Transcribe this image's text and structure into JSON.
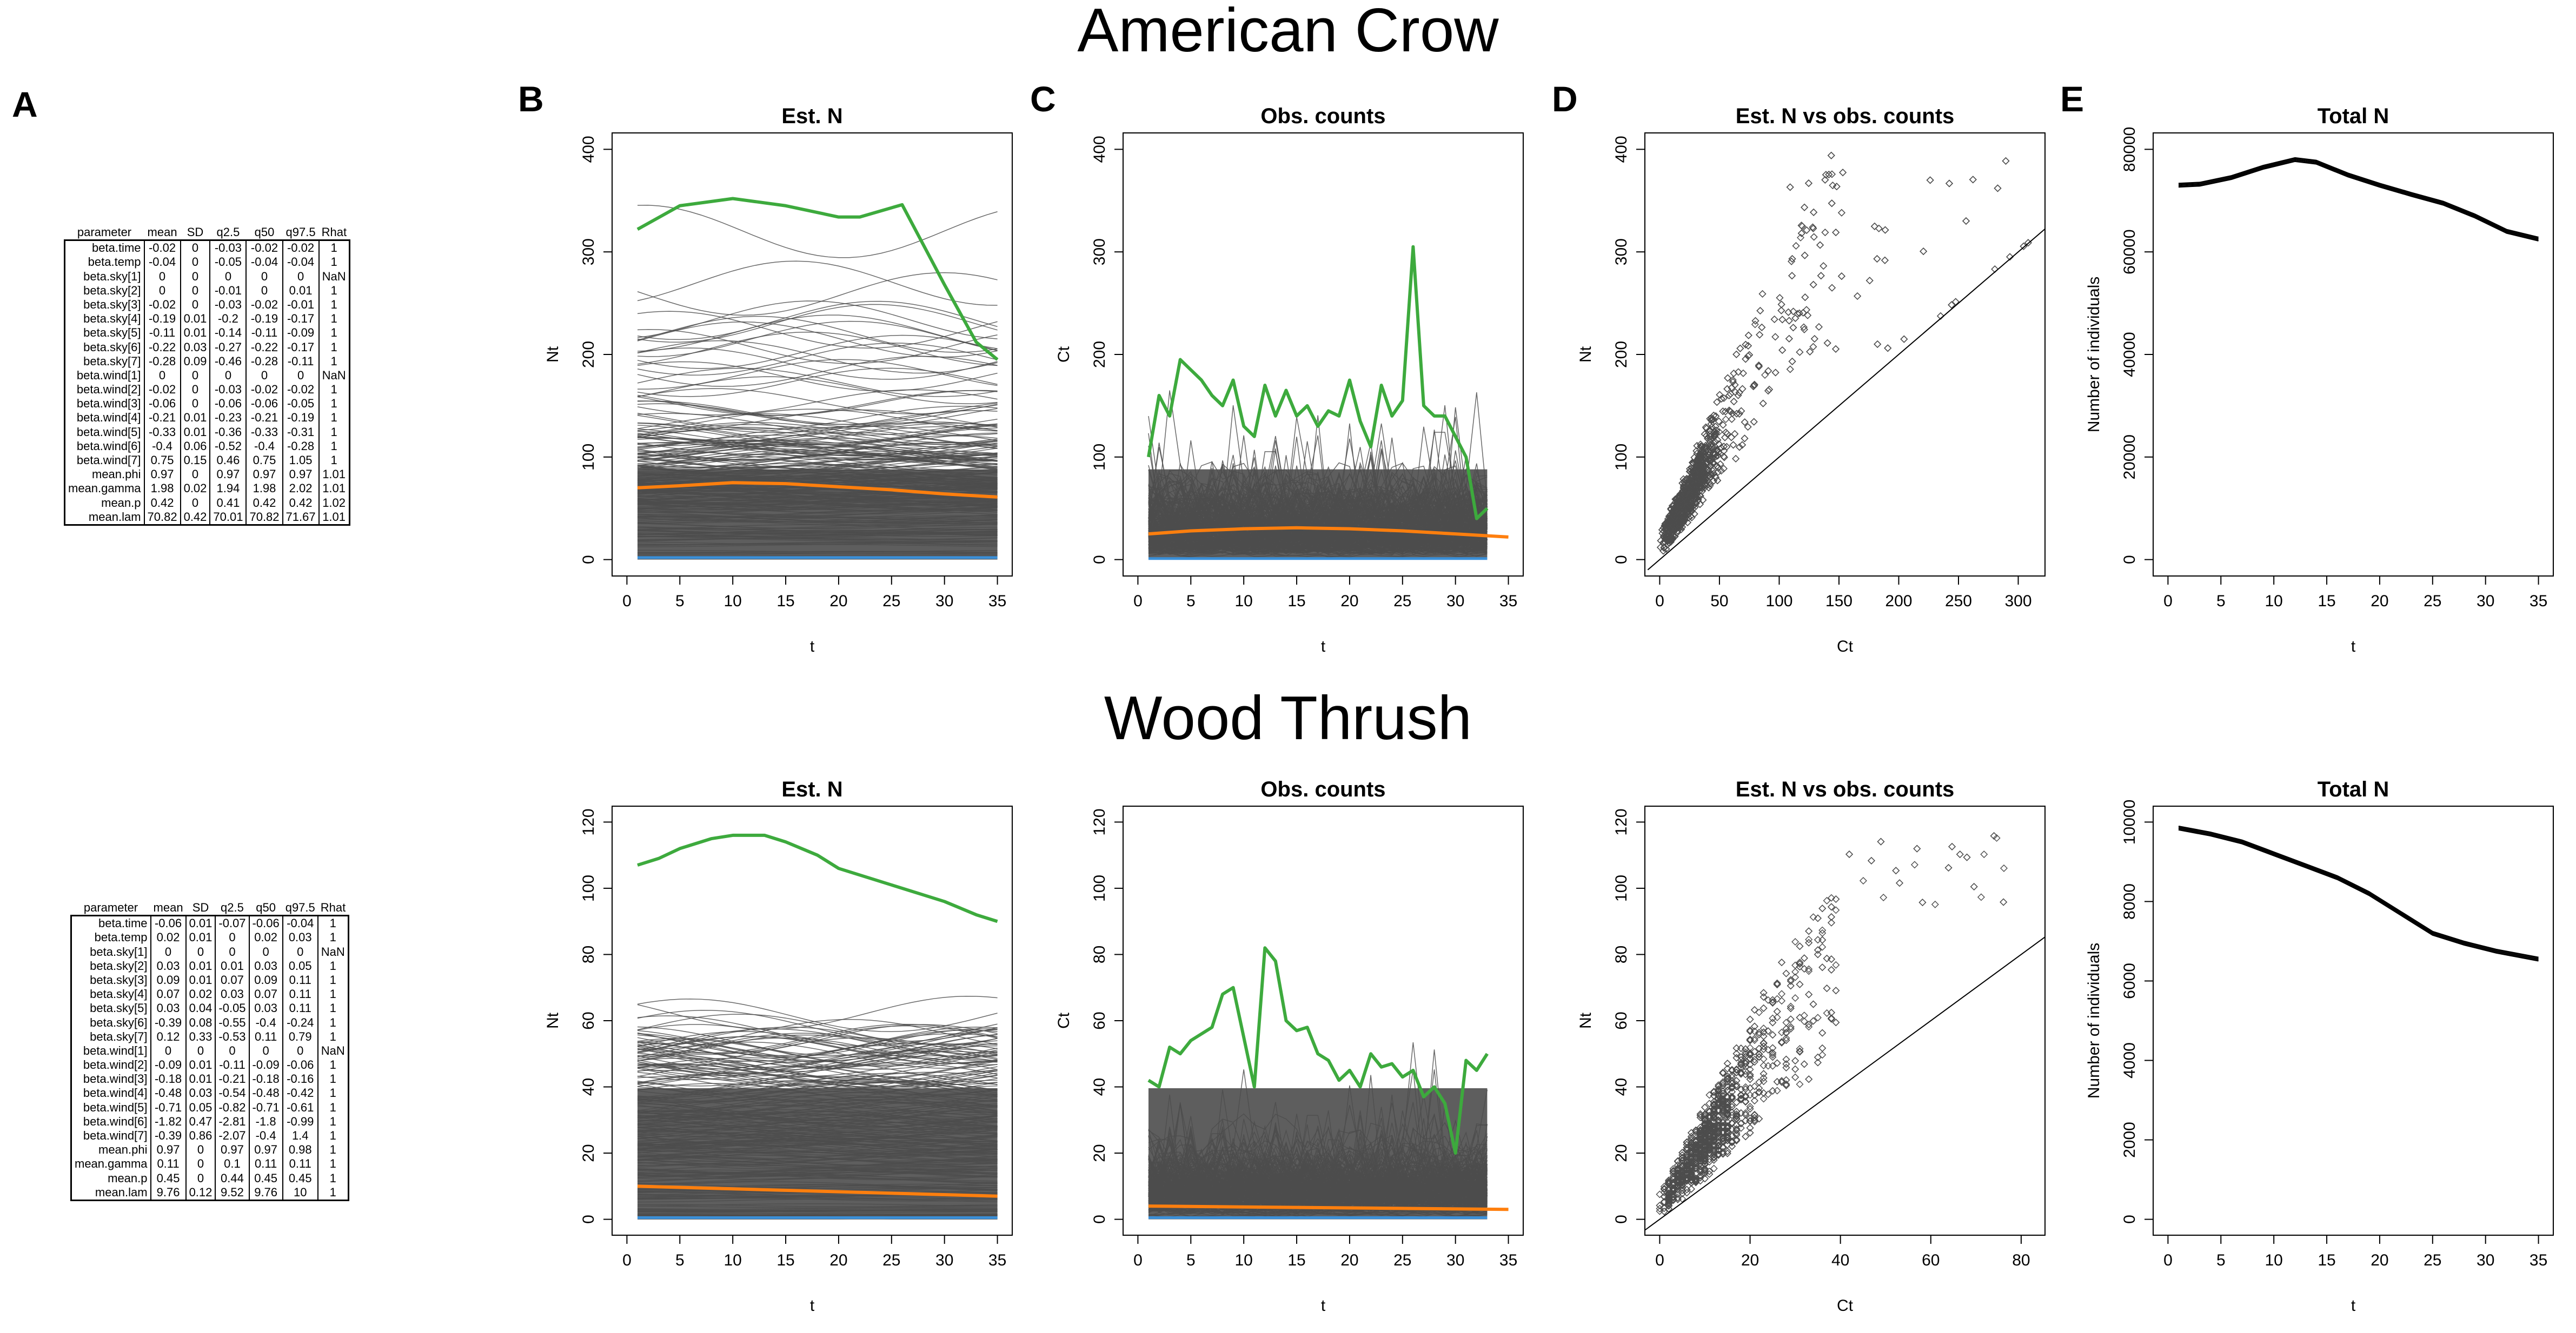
{
  "sections": [
    {
      "title": "American Crow"
    },
    {
      "title": "Wood Thrush"
    }
  ],
  "panel_letters": [
    "A",
    "B",
    "C",
    "D",
    "E"
  ],
  "tables": {
    "columns": [
      "parameter",
      "mean",
      "SD",
      "q2.5",
      "q50",
      "q97.5",
      "Rhat"
    ],
    "crow": [
      [
        "beta.time",
        "-0.02",
        "0",
        "-0.03",
        "-0.02",
        "-0.02",
        "1"
      ],
      [
        "beta.temp",
        "-0.04",
        "0",
        "-0.05",
        "-0.04",
        "-0.04",
        "1"
      ],
      [
        "beta.sky[1]",
        "0",
        "0",
        "0",
        "0",
        "0",
        "NaN"
      ],
      [
        "beta.sky[2]",
        "0",
        "0",
        "-0.01",
        "0",
        "0.01",
        "1"
      ],
      [
        "beta.sky[3]",
        "-0.02",
        "0",
        "-0.03",
        "-0.02",
        "-0.01",
        "1"
      ],
      [
        "beta.sky[4]",
        "-0.19",
        "0.01",
        "-0.2",
        "-0.19",
        "-0.17",
        "1"
      ],
      [
        "beta.sky[5]",
        "-0.11",
        "0.01",
        "-0.14",
        "-0.11",
        "-0.09",
        "1"
      ],
      [
        "beta.sky[6]",
        "-0.22",
        "0.03",
        "-0.27",
        "-0.22",
        "-0.17",
        "1"
      ],
      [
        "beta.sky[7]",
        "-0.28",
        "0.09",
        "-0.46",
        "-0.28",
        "-0.11",
        "1"
      ],
      [
        "beta.wind[1]",
        "0",
        "0",
        "0",
        "0",
        "0",
        "NaN"
      ],
      [
        "beta.wind[2]",
        "-0.02",
        "0",
        "-0.03",
        "-0.02",
        "-0.02",
        "1"
      ],
      [
        "beta.wind[3]",
        "-0.06",
        "0",
        "-0.06",
        "-0.06",
        "-0.05",
        "1"
      ],
      [
        "beta.wind[4]",
        "-0.21",
        "0.01",
        "-0.23",
        "-0.21",
        "-0.19",
        "1"
      ],
      [
        "beta.wind[5]",
        "-0.33",
        "0.01",
        "-0.36",
        "-0.33",
        "-0.31",
        "1"
      ],
      [
        "beta.wind[6]",
        "-0.4",
        "0.06",
        "-0.52",
        "-0.4",
        "-0.28",
        "1"
      ],
      [
        "beta.wind[7]",
        "0.75",
        "0.15",
        "0.46",
        "0.75",
        "1.05",
        "1"
      ],
      [
        "mean.phi",
        "0.97",
        "0",
        "0.97",
        "0.97",
        "0.97",
        "1.01"
      ],
      [
        "mean.gamma",
        "1.98",
        "0.02",
        "1.94",
        "1.98",
        "2.02",
        "1.01"
      ],
      [
        "mean.p",
        "0.42",
        "0",
        "0.41",
        "0.42",
        "0.42",
        "1.02"
      ],
      [
        "mean.lam",
        "70.82",
        "0.42",
        "70.01",
        "70.82",
        "71.67",
        "1.01"
      ]
    ],
    "thrush": [
      [
        "beta.time",
        "-0.06",
        "0.01",
        "-0.07",
        "-0.06",
        "-0.04",
        "1"
      ],
      [
        "beta.temp",
        "0.02",
        "0.01",
        "0",
        "0.02",
        "0.03",
        "1"
      ],
      [
        "beta.sky[1]",
        "0",
        "0",
        "0",
        "0",
        "0",
        "NaN"
      ],
      [
        "beta.sky[2]",
        "0.03",
        "0.01",
        "0.01",
        "0.03",
        "0.05",
        "1"
      ],
      [
        "beta.sky[3]",
        "0.09",
        "0.01",
        "0.07",
        "0.09",
        "0.11",
        "1"
      ],
      [
        "beta.sky[4]",
        "0.07",
        "0.02",
        "0.03",
        "0.07",
        "0.11",
        "1"
      ],
      [
        "beta.sky[5]",
        "0.03",
        "0.04",
        "-0.05",
        "0.03",
        "0.11",
        "1"
      ],
      [
        "beta.sky[6]",
        "-0.39",
        "0.08",
        "-0.55",
        "-0.4",
        "-0.24",
        "1"
      ],
      [
        "beta.sky[7]",
        "0.12",
        "0.33",
        "-0.53",
        "0.11",
        "0.79",
        "1"
      ],
      [
        "beta.wind[1]",
        "0",
        "0",
        "0",
        "0",
        "0",
        "NaN"
      ],
      [
        "beta.wind[2]",
        "-0.09",
        "0.01",
        "-0.11",
        "-0.09",
        "-0.06",
        "1"
      ],
      [
        "beta.wind[3]",
        "-0.18",
        "0.01",
        "-0.21",
        "-0.18",
        "-0.16",
        "1"
      ],
      [
        "beta.wind[4]",
        "-0.48",
        "0.03",
        "-0.54",
        "-0.48",
        "-0.42",
        "1"
      ],
      [
        "beta.wind[5]",
        "-0.71",
        "0.05",
        "-0.82",
        "-0.71",
        "-0.61",
        "1"
      ],
      [
        "beta.wind[6]",
        "-1.82",
        "0.47",
        "-2.81",
        "-1.8",
        "-0.99",
        "1"
      ],
      [
        "beta.wind[7]",
        "-0.39",
        "0.86",
        "-2.07",
        "-0.4",
        "1.4",
        "1"
      ],
      [
        "mean.phi",
        "0.97",
        "0",
        "0.97",
        "0.97",
        "0.98",
        "1"
      ],
      [
        "mean.gamma",
        "0.11",
        "0",
        "0.1",
        "0.11",
        "0.11",
        "1"
      ],
      [
        "mean.p",
        "0.45",
        "0",
        "0.44",
        "0.45",
        "0.45",
        "1"
      ],
      [
        "mean.lam",
        "9.76",
        "0.12",
        "9.52",
        "9.76",
        "10",
        "1"
      ]
    ]
  },
  "colors": {
    "grey": "#4d4d4d",
    "green": "#3daa3d",
    "orange": "#ff7f0e",
    "blue": "#3a8fd8"
  },
  "chart_data": [
    {
      "id": "crow_estN",
      "type": "line",
      "title": "Est. N",
      "xlabel": "t",
      "ylabel": "Nt",
      "xlim": [
        0,
        35
      ],
      "ylim": [
        0,
        400
      ],
      "xticks": [
        0,
        5,
        10,
        15,
        20,
        25,
        30,
        35
      ],
      "yticks": [
        0,
        100,
        200,
        300,
        400
      ],
      "series": [
        {
          "values": [
            [
              1,
              322
            ],
            [
              5,
              345
            ],
            [
              10,
              352
            ],
            [
              15,
              345
            ],
            [
              20,
              334
            ],
            [
              22,
              334
            ],
            [
              26,
              346
            ],
            [
              30,
              268
            ],
            [
              33,
              212
            ],
            [
              35,
              195
            ]
          ]
        },
        {
          "values": [
            [
              1,
              70
            ],
            [
              5,
              72
            ],
            [
              10,
              75
            ],
            [
              15,
              74
            ],
            [
              20,
              71
            ],
            [
              25,
              68
            ],
            [
              30,
              64
            ],
            [
              35,
              61
            ]
          ]
        },
        {
          "values": [
            [
              1,
              2
            ],
            [
              35,
              2
            ]
          ]
        }
      ]
    },
    {
      "id": "crow_obs",
      "type": "line",
      "title": "Obs. counts",
      "xlabel": "t",
      "ylabel": "Ct",
      "xlim": [
        0,
        35
      ],
      "ylim": [
        0,
        400
      ],
      "xticks": [
        0,
        5,
        10,
        15,
        20,
        25,
        30,
        35
      ],
      "yticks": [
        0,
        100,
        200,
        300,
        400
      ],
      "series": [
        {
          "values": [
            [
              1,
              100
            ],
            [
              2,
              160
            ],
            [
              3,
              140
            ],
            [
              4,
              195
            ],
            [
              5,
              185
            ],
            [
              6,
              175
            ],
            [
              7,
              160
            ],
            [
              8,
              150
            ],
            [
              9,
              175
            ],
            [
              10,
              130
            ],
            [
              11,
              120
            ],
            [
              12,
              170
            ],
            [
              13,
              140
            ],
            [
              14,
              165
            ],
            [
              15,
              140
            ],
            [
              16,
              150
            ],
            [
              17,
              130
            ],
            [
              18,
              145
            ],
            [
              19,
              140
            ],
            [
              20,
              175
            ],
            [
              21,
              135
            ],
            [
              22,
              110
            ],
            [
              23,
              170
            ],
            [
              24,
              140
            ],
            [
              25,
              155
            ],
            [
              26,
              305
            ],
            [
              27,
              150
            ],
            [
              28,
              140
            ],
            [
              29,
              140
            ],
            [
              30,
              120
            ],
            [
              31,
              100
            ],
            [
              32,
              40
            ],
            [
              33,
              50
            ]
          ]
        },
        {
          "values": [
            [
              1,
              25
            ],
            [
              5,
              28
            ],
            [
              10,
              30
            ],
            [
              15,
              31
            ],
            [
              20,
              30
            ],
            [
              25,
              28
            ],
            [
              30,
              25
            ],
            [
              35,
              22
            ]
          ]
        },
        {
          "values": [
            [
              1,
              1
            ],
            [
              33,
              1
            ]
          ]
        }
      ]
    },
    {
      "id": "crow_scatter",
      "type": "scatter",
      "title": "Est. N vs obs. counts",
      "xlabel": "Ct",
      "ylabel": "Nt",
      "xlim": [
        0,
        310
      ],
      "ylim": [
        0,
        400
      ],
      "xticks": [
        0,
        50,
        100,
        150,
        200,
        250,
        300
      ],
      "yticks": [
        0,
        100,
        200,
        300,
        400
      ]
    },
    {
      "id": "crow_total",
      "type": "line",
      "title": "Total N",
      "xlabel": "t",
      "ylabel": "Number of individuals",
      "xlim": [
        0,
        35
      ],
      "ylim": [
        0,
        80000
      ],
      "xticks": [
        0,
        5,
        10,
        15,
        20,
        25,
        30,
        35
      ],
      "yticks": [
        0,
        20000,
        40000,
        60000,
        80000
      ],
      "series": [
        {
          "values": [
            [
              1,
              73000
            ],
            [
              3,
              73200
            ],
            [
              6,
              74500
            ],
            [
              9,
              76500
            ],
            [
              12,
              78000
            ],
            [
              14,
              77500
            ],
            [
              17,
              75000
            ],
            [
              20,
              73000
            ],
            [
              23,
              71200
            ],
            [
              26,
              69500
            ],
            [
              29,
              67000
            ],
            [
              32,
              64000
            ],
            [
              35,
              62500
            ]
          ]
        }
      ]
    },
    {
      "id": "thrush_estN",
      "type": "line",
      "title": "Est. N",
      "xlabel": "t",
      "ylabel": "Nt",
      "xlim": [
        0,
        35
      ],
      "ylim": [
        0,
        120
      ],
      "xticks": [
        0,
        5,
        10,
        15,
        20,
        25,
        30,
        35
      ],
      "yticks": [
        0,
        20,
        40,
        60,
        80,
        100,
        120
      ],
      "series": [
        {
          "values": [
            [
              1,
              107
            ],
            [
              3,
              109
            ],
            [
              5,
              112
            ],
            [
              8,
              115
            ],
            [
              10,
              116
            ],
            [
              13,
              116
            ],
            [
              15,
              114
            ],
            [
              18,
              110
            ],
            [
              20,
              106
            ],
            [
              23,
              103
            ],
            [
              25,
              101
            ],
            [
              28,
              98
            ],
            [
              30,
              96
            ],
            [
              33,
              92
            ],
            [
              35,
              90
            ]
          ]
        },
        {
          "values": [
            [
              1,
              10
            ],
            [
              35,
              7
            ]
          ]
        },
        {
          "values": [
            [
              1,
              0.5
            ],
            [
              35,
              0.5
            ]
          ]
        }
      ]
    },
    {
      "id": "thrush_obs",
      "type": "line",
      "title": "Obs. counts",
      "xlabel": "t",
      "ylabel": "Ct",
      "xlim": [
        0,
        35
      ],
      "ylim": [
        0,
        120
      ],
      "xticks": [
        0,
        5,
        10,
        15,
        20,
        25,
        30,
        35
      ],
      "yticks": [
        0,
        20,
        40,
        60,
        80,
        100,
        120
      ],
      "series": [
        {
          "values": [
            [
              1,
              42
            ],
            [
              2,
              40
            ],
            [
              3,
              52
            ],
            [
              4,
              50
            ],
            [
              5,
              54
            ],
            [
              6,
              56
            ],
            [
              7,
              58
            ],
            [
              8,
              68
            ],
            [
              9,
              70
            ],
            [
              10,
              55
            ],
            [
              11,
              40
            ],
            [
              12,
              82
            ],
            [
              13,
              78
            ],
            [
              14,
              60
            ],
            [
              15,
              57
            ],
            [
              16,
              58
            ],
            [
              17,
              50
            ],
            [
              18,
              48
            ],
            [
              19,
              42
            ],
            [
              20,
              45
            ],
            [
              21,
              40
            ],
            [
              22,
              50
            ],
            [
              23,
              46
            ],
            [
              24,
              47
            ],
            [
              25,
              43
            ],
            [
              26,
              45
            ],
            [
              27,
              37
            ],
            [
              28,
              40
            ],
            [
              29,
              35
            ],
            [
              30,
              20
            ],
            [
              31,
              48
            ],
            [
              32,
              45
            ],
            [
              33,
              50
            ]
          ]
        },
        {
          "values": [
            [
              1,
              4
            ],
            [
              35,
              3
            ]
          ]
        },
        {
          "values": [
            [
              1,
              0.5
            ],
            [
              33,
              0.5
            ]
          ]
        }
      ]
    },
    {
      "id": "thrush_scatter",
      "type": "scatter",
      "title": "Est. N vs obs. counts",
      "xlabel": "Ct",
      "ylabel": "Nt",
      "xlim": [
        0,
        82
      ],
      "ylim": [
        0,
        120
      ],
      "xticks": [
        0,
        20,
        40,
        60,
        80
      ],
      "yticks": [
        0,
        20,
        40,
        60,
        80,
        100,
        120
      ]
    },
    {
      "id": "thrush_total",
      "type": "line",
      "title": "Total N",
      "xlabel": "t",
      "ylabel": "Number of individuals",
      "xlim": [
        0,
        35
      ],
      "ylim": [
        0,
        10000
      ],
      "xticks": [
        0,
        5,
        10,
        15,
        20,
        25,
        30,
        35
      ],
      "yticks": [
        0,
        2000,
        4000,
        6000,
        8000,
        10000
      ],
      "series": [
        {
          "values": [
            [
              1,
              9850
            ],
            [
              4,
              9700
            ],
            [
              7,
              9500
            ],
            [
              10,
              9200
            ],
            [
              13,
              8900
            ],
            [
              16,
              8600
            ],
            [
              19,
              8200
            ],
            [
              22,
              7700
            ],
            [
              25,
              7200
            ],
            [
              28,
              6950
            ],
            [
              31,
              6750
            ],
            [
              35,
              6550
            ]
          ]
        }
      ]
    }
  ]
}
